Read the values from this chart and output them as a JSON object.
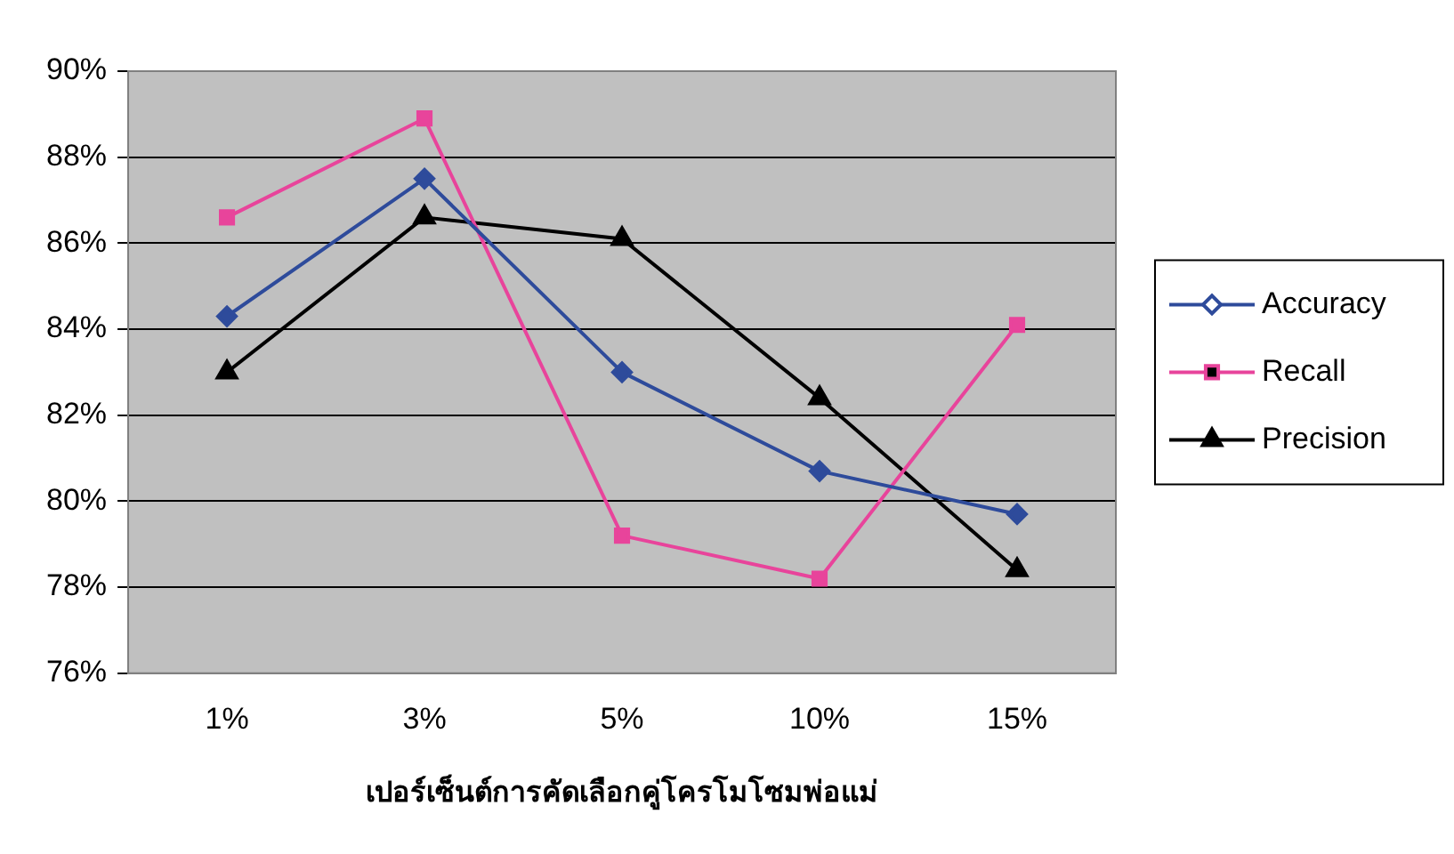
{
  "chart_data": {
    "type": "line",
    "xlabel": "เปอร์เซ็นต์การคัดเลือกคู่โครโมโซมพ่อแม่",
    "categories": [
      "1%",
      "3%",
      "5%",
      "10%",
      "15%"
    ],
    "series": [
      {
        "name": "Accuracy",
        "color": "#2e4b9b",
        "marker": "diamond",
        "values": [
          84.3,
          87.5,
          83.0,
          80.7,
          79.7
        ]
      },
      {
        "name": "Recall",
        "color": "#e8449b",
        "marker": "square",
        "values": [
          86.6,
          88.9,
          79.2,
          78.2,
          84.1
        ]
      },
      {
        "name": "Precision",
        "color": "#000000",
        "marker": "triangle",
        "values": [
          83.0,
          86.6,
          86.1,
          82.4,
          78.4
        ]
      }
    ],
    "ylim": [
      76,
      90
    ],
    "yticks": [
      {
        "value": 76,
        "label": "76%"
      },
      {
        "value": 78,
        "label": "78%"
      },
      {
        "value": 80,
        "label": "80%"
      },
      {
        "value": 82,
        "label": "82%"
      },
      {
        "value": 84,
        "label": "84%"
      },
      {
        "value": 86,
        "label": "86%"
      },
      {
        "value": 88,
        "label": "88%"
      },
      {
        "value": 90,
        "label": "90%"
      }
    ],
    "grid": "y",
    "legend": "right",
    "line_style": "solid"
  }
}
